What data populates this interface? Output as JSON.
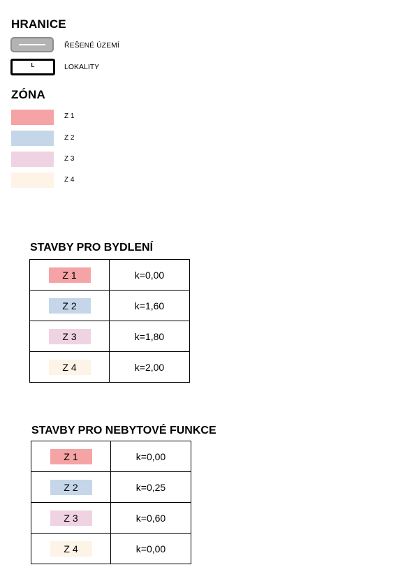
{
  "hranice": {
    "title": "HRANICE",
    "items": [
      {
        "label": "ŘEŠENÉ ÚZEMÍ"
      },
      {
        "label": "LOKALITY",
        "symbol": "L"
      }
    ]
  },
  "zona": {
    "title": "ZÓNA",
    "items": [
      {
        "label": "Z 1",
        "color": "#f5a3a5"
      },
      {
        "label": "Z 2",
        "color": "#c5d6e8"
      },
      {
        "label": "Z 3",
        "color": "#f0d3e3"
      },
      {
        "label": "Z 4",
        "color": "#fdf3e6"
      }
    ]
  },
  "bydleni": {
    "title": "STAVBY PRO BYDLENÍ",
    "rows": [
      {
        "zone": "Z 1",
        "value": "k=0,00"
      },
      {
        "zone": "Z 2",
        "value": "k=1,60"
      },
      {
        "zone": "Z 3",
        "value": "k=1,80"
      },
      {
        "zone": "Z 4",
        "value": "k=2,00"
      }
    ]
  },
  "nebytove": {
    "title": "STAVBY PRO NEBYTOVÉ FUNKCE",
    "rows": [
      {
        "zone": "Z 1",
        "value": "k=0,00"
      },
      {
        "zone": "Z 2",
        "value": "k=0,25"
      },
      {
        "zone": "Z 3",
        "value": "k=0,60"
      },
      {
        "zone": "Z 4",
        "value": "k=0,00"
      }
    ]
  }
}
